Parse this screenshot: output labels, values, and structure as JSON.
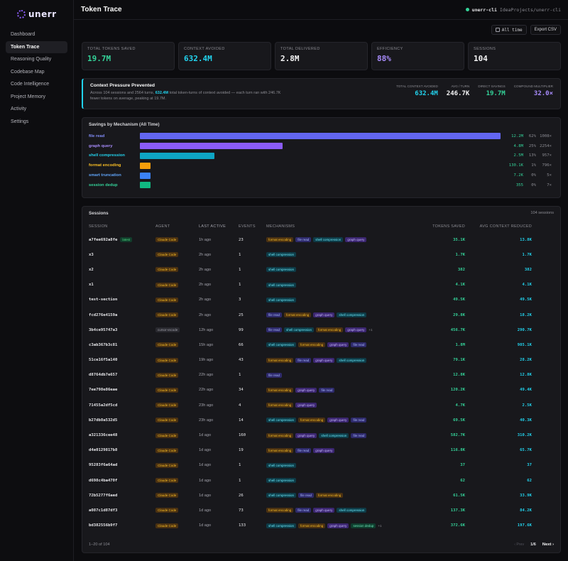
{
  "app": {
    "logo_text": "unerr"
  },
  "sidebar": {
    "items": [
      {
        "label": "Dashboard",
        "active": false
      },
      {
        "label": "Token Trace",
        "active": true
      },
      {
        "label": "Reasoning Quality",
        "active": false
      },
      {
        "label": "Codebase Map",
        "active": false
      },
      {
        "label": "Code Intelligence",
        "active": false
      },
      {
        "label": "Project Memory",
        "active": false
      },
      {
        "label": "Activity",
        "active": false
      },
      {
        "label": "Settings",
        "active": false
      }
    ]
  },
  "header": {
    "title": "Token Trace",
    "project_name": "unerr-cli",
    "project_path": "IdeaProjects/unerr-cli",
    "status_color": "#34d399"
  },
  "toolbar": {
    "range_label": "All time",
    "export_label": "Export CSV"
  },
  "stats": [
    {
      "label": "TOTAL TOKENS SAVED",
      "value": "19.7M",
      "color": "#34d399"
    },
    {
      "label": "CONTEXT AVOIDED",
      "value": "632.4M",
      "color": "#22d3ee"
    },
    {
      "label": "TOTAL DELIVERED",
      "value": "2.8M",
      "color": "#f4f4f5"
    },
    {
      "label": "EFFICIENCY",
      "value": "88%",
      "color": "#a78bfa"
    },
    {
      "label": "SESSIONS",
      "value": "104",
      "color": "#f4f4f5"
    }
  ],
  "pressure": {
    "title": "Context Pressure Prevented",
    "desc_before": "Across 104 sessions and 2564 turns, ",
    "desc_highlight": "632.4M",
    "desc_after": " total token-turns of context avoided — each turn ran with 246.7K fewer tokens on average, peaking at 19.7M.",
    "metrics": [
      {
        "label": "TOTAL CONTEXT AVOIDED",
        "value": "632.4M",
        "color": "#22d3ee"
      },
      {
        "label": "AVG / TURN",
        "value": "246.7K",
        "color": "#f4f4f5"
      },
      {
        "label": "DIRECT SAVINGS",
        "value": "19.7M",
        "color": "#34d399"
      },
      {
        "label": "COMPOUND MULTIPLIER",
        "value": "32.0×",
        "color": "#a78bfa"
      }
    ]
  },
  "mechanisms_panel": {
    "title": "Savings by Mechanism (All Time)",
    "rows": [
      {
        "name": "file read",
        "fraction": 1.0,
        "value": "12.2M",
        "percent": "62%",
        "multiplier": "1008×",
        "color": "#6366f1"
      },
      {
        "name": "graph query",
        "fraction": 0.395,
        "value": "4.8M",
        "percent": "25%",
        "multiplier": "2254×",
        "color": "#8b5cf6"
      },
      {
        "name": "shell compression",
        "fraction": 0.206,
        "value": "2.5M",
        "percent": "13%",
        "multiplier": "957×",
        "color": "#0ea5c4"
      },
      {
        "name": "format encoding",
        "fraction": 0.03,
        "value": "130.1K",
        "percent": "1%",
        "multiplier": "796×",
        "color": "#f59e0b"
      },
      {
        "name": "smart truncation",
        "fraction": 0.03,
        "value": "7.2K",
        "percent": "0%",
        "multiplier": "5×",
        "color": "#3b82f6"
      },
      {
        "name": "session dedup",
        "fraction": 0.03,
        "value": "355",
        "percent": "0%",
        "multiplier": "7×",
        "color": "#10b981"
      }
    ]
  },
  "sessions_panel": {
    "title": "Sessions",
    "count_label": "104 sessions",
    "columns": [
      "SESSION",
      "AGENT",
      "LAST ACTIVE",
      "EVENTS",
      "MECHANISMS",
      "TOKENS SAVED",
      "AVG CONTEXT REDUCED"
    ],
    "latest_label": "latest",
    "rows": [
      {
        "id": "a7fee692a8fe",
        "latest": true,
        "agent": "Claude Code",
        "active": "1h ago",
        "events": "23",
        "mechs": [
          "format encoding",
          "file read",
          "shell compression",
          "graph query"
        ],
        "more": "",
        "saved": "35.1K",
        "avg": "13.8K"
      },
      {
        "id": "x3",
        "latest": false,
        "agent": "Claude Code",
        "active": "2h ago",
        "events": "1",
        "mechs": [
          "shell compression"
        ],
        "more": "",
        "saved": "1.7K",
        "avg": "1.7K"
      },
      {
        "id": "x2",
        "latest": false,
        "agent": "Claude Code",
        "active": "2h ago",
        "events": "1",
        "mechs": [
          "shell compression"
        ],
        "more": "",
        "saved": "382",
        "avg": "382"
      },
      {
        "id": "x1",
        "latest": false,
        "agent": "Claude Code",
        "active": "2h ago",
        "events": "1",
        "mechs": [
          "shell compression"
        ],
        "more": "",
        "saved": "4.1K",
        "avg": "4.1K"
      },
      {
        "id": "test-section",
        "latest": false,
        "agent": "Claude Code",
        "active": "2h ago",
        "events": "3",
        "mechs": [
          "shell compression"
        ],
        "more": "",
        "saved": "49.5K",
        "avg": "49.5K"
      },
      {
        "id": "fcd276e4159a",
        "latest": false,
        "agent": "Claude Code",
        "active": "2h ago",
        "events": "25",
        "mechs": [
          "file read",
          "format encoding",
          "graph query",
          "shell compression"
        ],
        "more": "",
        "saved": "29.8K",
        "avg": "18.2K"
      },
      {
        "id": "3b4ce95747a3",
        "latest": false,
        "agent": "cursor-vscode",
        "active": "12h ago",
        "events": "99",
        "mechs": [
          "file read",
          "shell compression",
          "format encoding",
          "graph query"
        ],
        "more": "+1",
        "saved": "456.7K",
        "avg": "290.7K"
      },
      {
        "id": "c3ab367b3c81",
        "latest": false,
        "agent": "Claude Code",
        "active": "15h ago",
        "events": "66",
        "mechs": [
          "shell compression",
          "format encoding",
          "graph query",
          "file read"
        ],
        "more": "",
        "saved": "1.8M",
        "avg": "985.1K"
      },
      {
        "id": "51ce16f5a140",
        "latest": false,
        "agent": "Claude Code",
        "active": "19h ago",
        "events": "43",
        "mechs": [
          "format encoding",
          "file read",
          "graph query",
          "shell compression"
        ],
        "more": "",
        "saved": "79.1K",
        "avg": "28.2K"
      },
      {
        "id": "d8764db7e657",
        "latest": false,
        "agent": "Claude Code",
        "active": "22h ago",
        "events": "1",
        "mechs": [
          "file read"
        ],
        "more": "",
        "saved": "12.8K",
        "avg": "12.8K"
      },
      {
        "id": "7ee798e86eae",
        "latest": false,
        "agent": "Claude Code",
        "active": "22h ago",
        "events": "34",
        "mechs": [
          "format encoding",
          "graph query",
          "file read"
        ],
        "more": "",
        "saved": "120.2K",
        "avg": "49.4K"
      },
      {
        "id": "71455a2df5cd",
        "latest": false,
        "agent": "Claude Code",
        "active": "23h ago",
        "events": "4",
        "mechs": [
          "format encoding",
          "graph query"
        ],
        "more": "",
        "saved": "4.7K",
        "avg": "2.5K"
      },
      {
        "id": "b27db8a532d5",
        "latest": false,
        "agent": "Claude Code",
        "active": "23h ago",
        "events": "14",
        "mechs": [
          "shell compression",
          "format encoding",
          "graph query",
          "file read"
        ],
        "more": "",
        "saved": "69.5K",
        "avg": "40.3K"
      },
      {
        "id": "a321336cee48",
        "latest": false,
        "agent": "Claude Code",
        "active": "1d ago",
        "events": "160",
        "mechs": [
          "format encoding",
          "graph query",
          "shell compression",
          "file read"
        ],
        "more": "",
        "saved": "582.7K",
        "avg": "310.2K"
      },
      {
        "id": "d4e0129817b8",
        "latest": false,
        "agent": "Claude Code",
        "active": "1d ago",
        "events": "19",
        "mechs": [
          "format encoding",
          "file read",
          "graph query"
        ],
        "more": "",
        "saved": "116.8K",
        "avg": "65.7K"
      },
      {
        "id": "95283f6a64ad",
        "latest": false,
        "agent": "Claude Code",
        "active": "1d ago",
        "events": "1",
        "mechs": [
          "shell compression"
        ],
        "more": "",
        "saved": "37",
        "avg": "37"
      },
      {
        "id": "d698c4ba470f",
        "latest": false,
        "agent": "Claude Code",
        "active": "1d ago",
        "events": "1",
        "mechs": [
          "shell compression"
        ],
        "more": "",
        "saved": "62",
        "avg": "62"
      },
      {
        "id": "72b5277f6aed",
        "latest": false,
        "agent": "Claude Code",
        "active": "1d ago",
        "events": "26",
        "mechs": [
          "shell compression",
          "file read",
          "format encoding"
        ],
        "more": "",
        "saved": "61.5K",
        "avg": "33.9K"
      },
      {
        "id": "a087c1d87df3",
        "latest": false,
        "agent": "Claude Code",
        "active": "1d ago",
        "events": "73",
        "mechs": [
          "format encoding",
          "file read",
          "graph query",
          "shell compression"
        ],
        "more": "",
        "saved": "137.3K",
        "avg": "84.2K"
      },
      {
        "id": "bd382556b9f7",
        "latest": false,
        "agent": "Claude Code",
        "active": "1d ago",
        "events": "133",
        "mechs": [
          "shell compression",
          "format encoding",
          "graph query",
          "session dedup"
        ],
        "more": "+1",
        "saved": "372.6K",
        "avg": "197.6K"
      }
    ],
    "range_label": "1–20 of 104",
    "prev_label": "‹ Prev",
    "page_label": "1/6",
    "next_label": "Next ›"
  },
  "tag_styles": {
    "file read": {
      "bg": "#2e2a6b",
      "fg": "#a5b4fc"
    },
    "graph query": {
      "bg": "#3b2670",
      "fg": "#c4b5fd"
    },
    "shell compression": {
      "bg": "#0e3b47",
      "fg": "#67e8f9"
    },
    "format encoding": {
      "bg": "#4a3112",
      "fg": "#fbbf24"
    },
    "session dedup": {
      "bg": "#0f3d2e",
      "fg": "#6ee7b7"
    },
    "Claude Code": {
      "bg": "#4a3112",
      "fg": "#fbbf24"
    },
    "cursor-vscode": {
      "bg": "#2a2a30",
      "fg": "#a1a1aa"
    }
  }
}
